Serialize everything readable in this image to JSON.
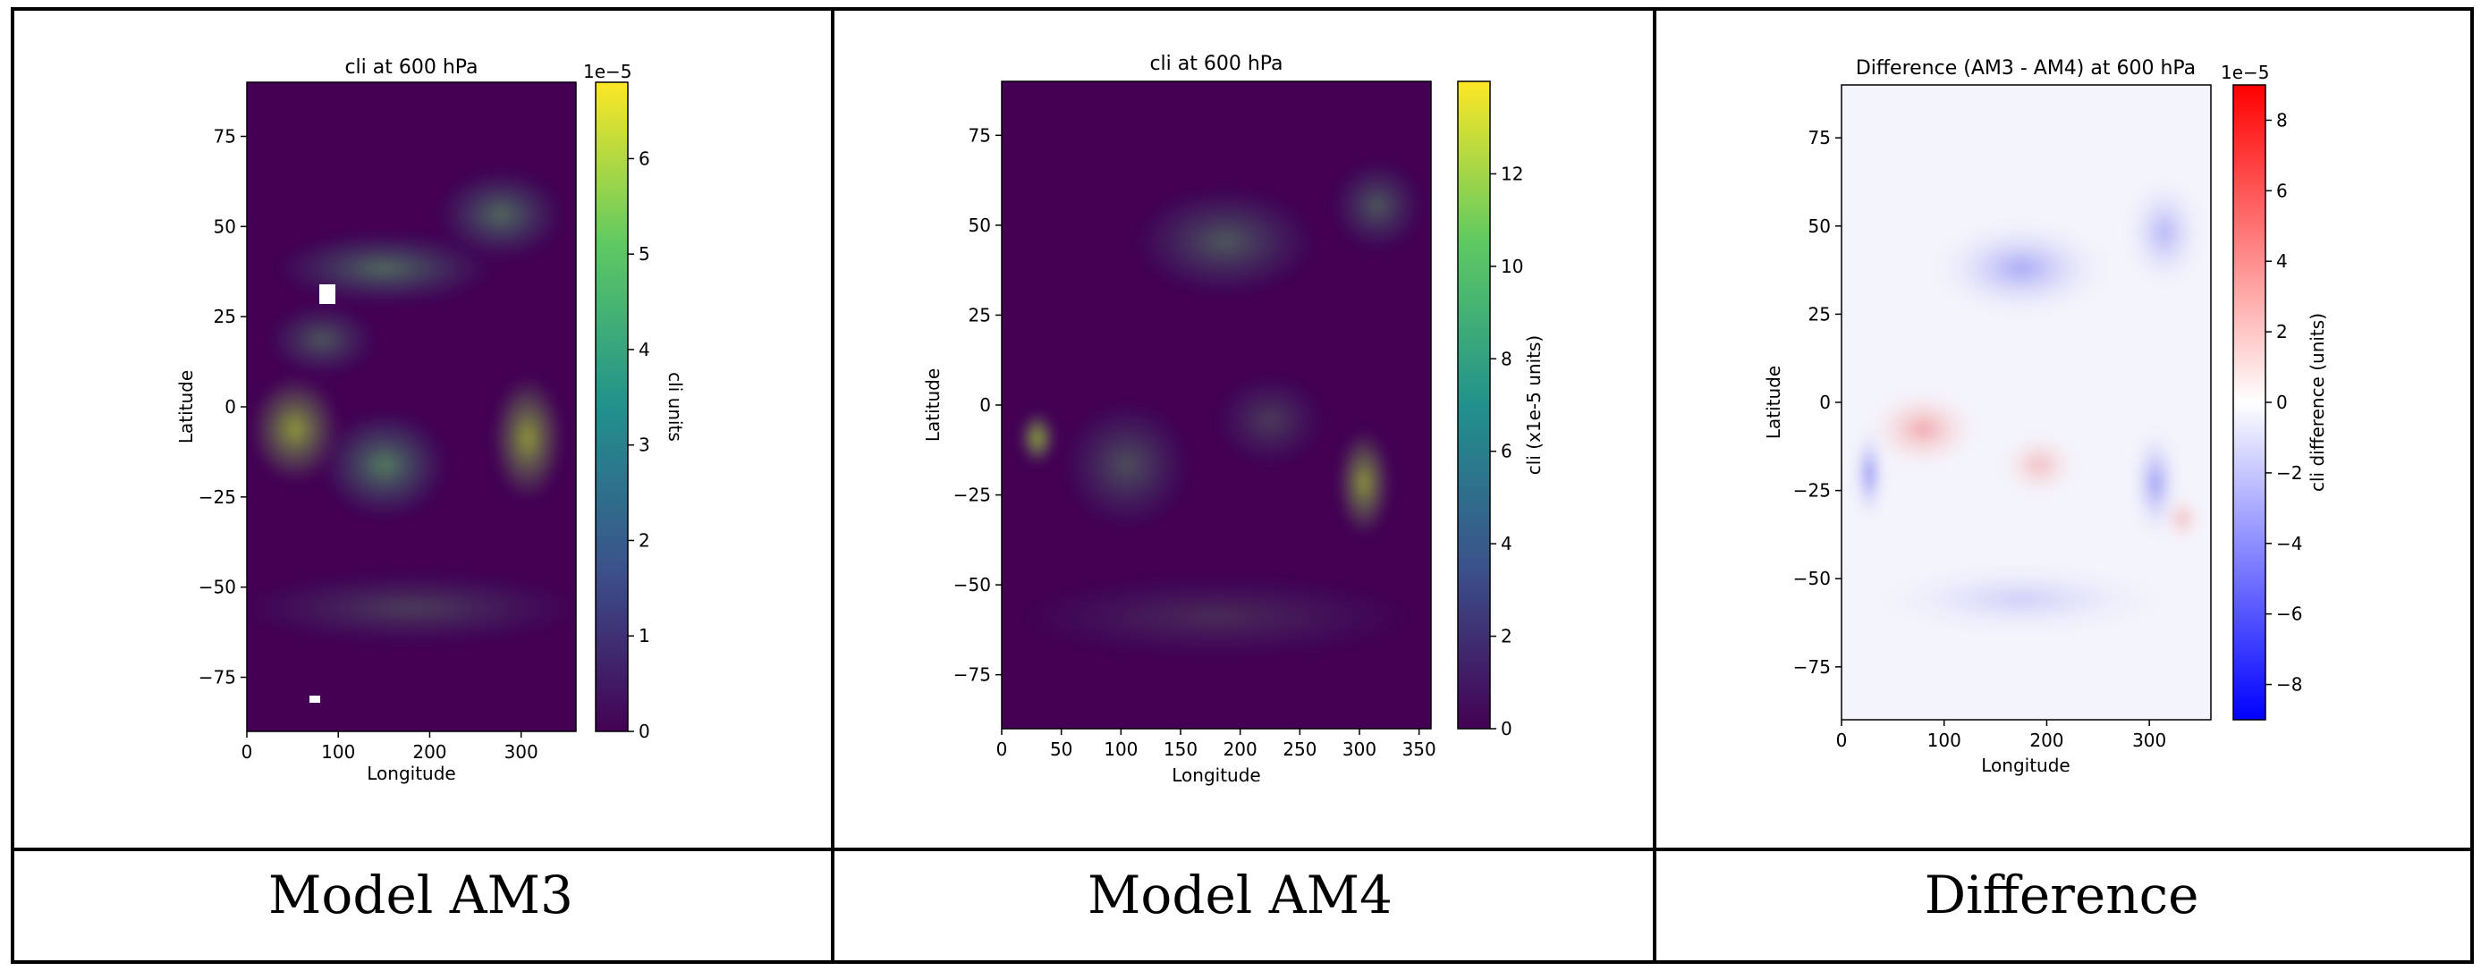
{
  "captions": {
    "am3": "Model AM3",
    "am4": "Model AM4",
    "diff": "Difference"
  },
  "chart_data": [
    {
      "type": "heatmap",
      "title": "cli at 600 hPa",
      "xlabel": "Longitude",
      "ylabel": "Latitude",
      "xlim": [
        0,
        360
      ],
      "ylim": [
        -90,
        90
      ],
      "xticks": [
        "0",
        "100",
        "200",
        "300"
      ],
      "yticks": [
        "75",
        "50",
        "25",
        "0",
        "−25",
        "−50",
        "−75"
      ],
      "colormap": "viridis",
      "colorbar": {
        "label": "cli units",
        "offset_label": "1e−5",
        "range": [
          0,
          6.8
        ],
        "ticks": [
          "0",
          "1",
          "2",
          "3",
          "4",
          "5",
          "6"
        ]
      }
    },
    {
      "type": "heatmap",
      "title": "cli at 600 hPa",
      "xlabel": "Longitude",
      "ylabel": "Latitude",
      "xlim": [
        0,
        360
      ],
      "ylim": [
        -90,
        90
      ],
      "xticks": [
        "0",
        "50",
        "100",
        "150",
        "200",
        "250",
        "300",
        "350"
      ],
      "yticks": [
        "75",
        "50",
        "25",
        "0",
        "−25",
        "−50",
        "−75"
      ],
      "colormap": "viridis",
      "colorbar": {
        "label": "cli (x1e-5 units)",
        "range": [
          0,
          14
        ],
        "ticks": [
          "0",
          "2",
          "4",
          "6",
          "8",
          "10",
          "12"
        ]
      }
    },
    {
      "type": "heatmap",
      "title": "Difference (AM3 - AM4) at 600 hPa",
      "xlabel": "Longitude",
      "ylabel": "Latitude",
      "xlim": [
        0,
        360
      ],
      "ylim": [
        -90,
        90
      ],
      "xticks": [
        "0",
        "100",
        "200",
        "300"
      ],
      "yticks": [
        "75",
        "50",
        "25",
        "0",
        "−25",
        "−50",
        "−75"
      ],
      "colormap": "bwr",
      "colorbar": {
        "label": "cli difference (units)",
        "offset_label": "1e−5",
        "range": [
          -9,
          9
        ],
        "ticks": [
          "8",
          "6",
          "4",
          "2",
          "0",
          "−2",
          "−4",
          "−6",
          "−8"
        ]
      }
    }
  ]
}
